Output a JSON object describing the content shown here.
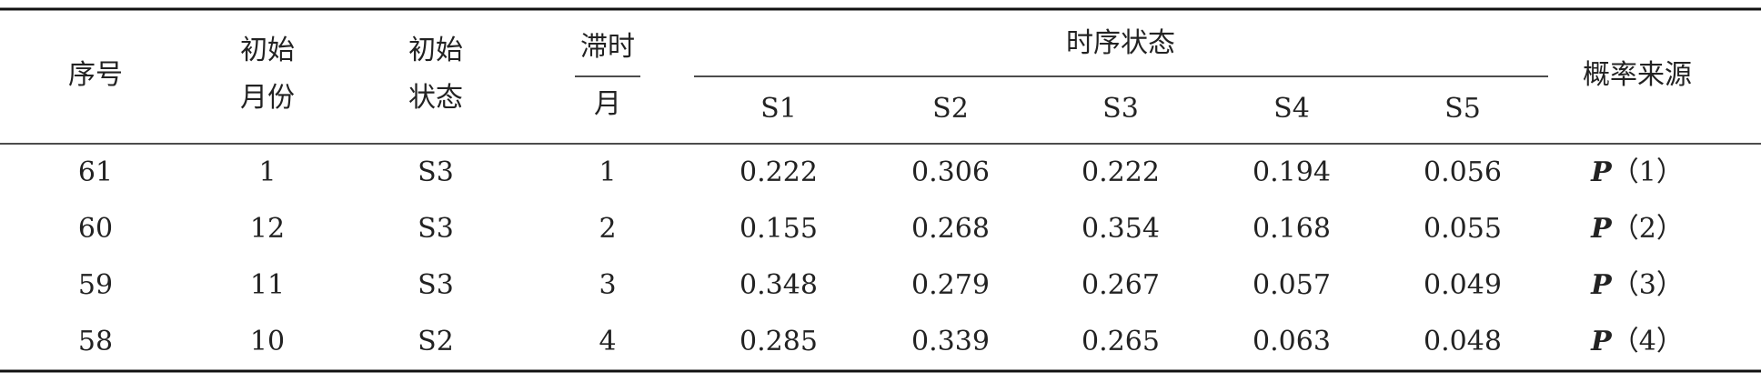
{
  "table": {
    "header": {
      "index": "序号",
      "start_month": [
        "初始",
        "月份"
      ],
      "start_state": [
        "初始",
        "状态"
      ],
      "lag": {
        "top": "滞时",
        "bottom": "月"
      },
      "sequence_state": {
        "title": "时序状态",
        "states": [
          "S1",
          "S2",
          "S3",
          "S4",
          "S5"
        ]
      },
      "source": "概率来源"
    },
    "rows": [
      {
        "cells": [
          61,
          1,
          "S3",
          1,
          0.222,
          0.306,
          0.222,
          0.194,
          0.056
        ],
        "source": {
          "symbol": "P",
          "arg": "（1）"
        }
      },
      {
        "cells": [
          60,
          12,
          "S3",
          2,
          0.155,
          0.268,
          0.354,
          0.168,
          0.055
        ],
        "source": {
          "symbol": "P",
          "arg": "（2）"
        }
      },
      {
        "cells": [
          59,
          11,
          "S3",
          3,
          0.348,
          0.279,
          0.267,
          0.057,
          0.049
        ],
        "source": {
          "symbol": "P",
          "arg": "（3）"
        }
      },
      {
        "cells": [
          58,
          10,
          "S2",
          4,
          0.285,
          0.339,
          0.265,
          0.063,
          0.048
        ],
        "source": {
          "symbol": "P",
          "arg": "（4）"
        }
      }
    ]
  }
}
